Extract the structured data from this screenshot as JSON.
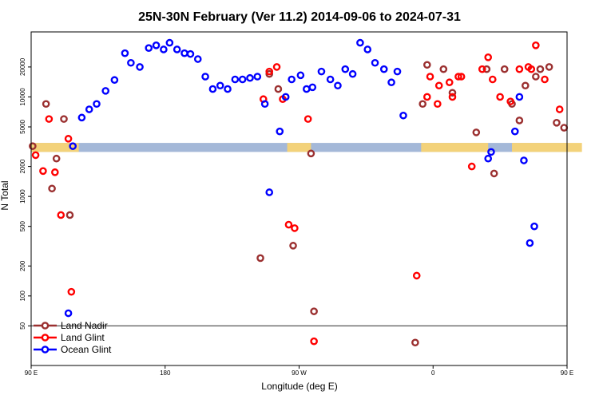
{
  "chart_data": {
    "type": "scatter",
    "title": "25N-30N February (Ver 11.2)   2014-09-06 to 2024-07-31",
    "xlabel": "Longitude (deg E)",
    "ylabel": "N Total",
    "x_axis": {
      "range_deg_east": [
        90,
        450
      ],
      "ticks": [
        {
          "value": 90,
          "label": "90 E"
        },
        {
          "value": 180,
          "label": "180"
        },
        {
          "value": 270,
          "label": "90 W"
        },
        {
          "value": 360,
          "label": "0"
        },
        {
          "value": 450,
          "label": "90 E"
        },
        {
          "value": 540,
          "label": "180"
        }
      ]
    },
    "y_axis": {
      "scale": "log",
      "ylim": [
        20,
        45000
      ],
      "ticks": [
        {
          "value": 50,
          "label": "50"
        },
        {
          "value": 100,
          "label": "100"
        },
        {
          "value": 200,
          "label": "200"
        },
        {
          "value": 500,
          "label": "500"
        },
        {
          "value": 1000,
          "label": "1000"
        },
        {
          "value": 2000,
          "label": "2000"
        },
        {
          "value": 5000,
          "label": "5000"
        },
        {
          "value": 10000,
          "label": "10000"
        },
        {
          "value": 20000,
          "label": "20000"
        }
      ]
    },
    "baseline_value": 50,
    "land_mask_band": {
      "y_range": [
        2800,
        3450
      ],
      "ocean_color": "#a4b8d8",
      "land_color": "#f3d27a",
      "land_lon": [
        [
          90,
          122
        ],
        [
          262,
          278
        ],
        [
          352,
          397
        ],
        [
          413,
          460
        ]
      ]
    },
    "legend": {
      "position": "bottom-left",
      "entries": [
        {
          "name": "Land Nadir",
          "color": "#9b3030"
        },
        {
          "name": "Land Glint",
          "color": "#ff0000"
        },
        {
          "name": "Ocean Glint",
          "color": "#0000ff"
        }
      ]
    },
    "series": [
      {
        "name": "Land Nadir",
        "color": "#9b3030",
        "points": [
          [
            91,
            3200
          ],
          [
            100,
            8500
          ],
          [
            104,
            1200
          ],
          [
            107,
            2400
          ],
          [
            112,
            6000
          ],
          [
            116,
            650
          ],
          [
            244,
            240
          ],
          [
            250,
            17000
          ],
          [
            256,
            12000
          ],
          [
            266,
            320
          ],
          [
            278,
            2700
          ],
          [
            280,
            70
          ],
          [
            348,
            34
          ],
          [
            353,
            8500
          ],
          [
            356,
            21000
          ],
          [
            367,
            19000
          ],
          [
            373,
            11000
          ],
          [
            389,
            4400
          ],
          [
            396,
            19000
          ],
          [
            401,
            1700
          ],
          [
            408,
            19000
          ],
          [
            413,
            8500
          ],
          [
            418,
            5800
          ],
          [
            422,
            13000
          ],
          [
            429,
            16000
          ],
          [
            432,
            19000
          ],
          [
            438,
            20000
          ],
          [
            443,
            5500
          ],
          [
            448,
            4900
          ],
          [
            453,
            3200
          ],
          [
            463,
            8500
          ],
          [
            467,
            1200
          ],
          [
            471,
            2400
          ],
          [
            476,
            6000
          ],
          [
            481,
            650
          ]
        ]
      },
      {
        "name": "Land Glint",
        "color": "#ff0000",
        "points": [
          [
            93,
            2600
          ],
          [
            98,
            1800
          ],
          [
            102,
            6000
          ],
          [
            106,
            1750
          ],
          [
            110,
            650
          ],
          [
            115,
            3800
          ],
          [
            117,
            110
          ],
          [
            246,
            9500
          ],
          [
            250,
            18000
          ],
          [
            255,
            20000
          ],
          [
            259,
            9500
          ],
          [
            263,
            520
          ],
          [
            267,
            480
          ],
          [
            276,
            6000
          ],
          [
            280,
            35
          ],
          [
            349,
            160
          ],
          [
            356,
            10000
          ],
          [
            358,
            16000
          ],
          [
            363,
            8500
          ],
          [
            364,
            13000
          ],
          [
            371,
            14000
          ],
          [
            373,
            10000
          ],
          [
            377,
            16000
          ],
          [
            379,
            16000
          ],
          [
            386,
            2000
          ],
          [
            393,
            19000
          ],
          [
            397,
            25000
          ],
          [
            400,
            15000
          ],
          [
            405,
            10000
          ],
          [
            412,
            9000
          ],
          [
            418,
            19000
          ],
          [
            424,
            20000
          ],
          [
            426,
            19000
          ],
          [
            429,
            33000
          ],
          [
            435,
            15000
          ],
          [
            445,
            7500
          ],
          [
            451,
            7000
          ],
          [
            456,
            2600
          ],
          [
            460,
            1800
          ],
          [
            465,
            6000
          ],
          [
            468,
            1750
          ],
          [
            472,
            650
          ],
          [
            478,
            6000
          ],
          [
            482,
            110
          ]
        ]
      },
      {
        "name": "Ocean Glint",
        "color": "#0000ff",
        "points": [
          [
            115,
            67
          ],
          [
            118,
            3200
          ],
          [
            124,
            6200
          ],
          [
            129,
            7500
          ],
          [
            134,
            8500
          ],
          [
            140,
            11500
          ],
          [
            146,
            14800
          ],
          [
            153,
            27500
          ],
          [
            157,
            22000
          ],
          [
            163,
            20000
          ],
          [
            169,
            31000
          ],
          [
            174,
            33000
          ],
          [
            179,
            30000
          ],
          [
            183,
            35000
          ],
          [
            188,
            30000
          ],
          [
            193,
            27500
          ],
          [
            197,
            27000
          ],
          [
            202,
            24000
          ],
          [
            207,
            16000
          ],
          [
            212,
            12000
          ],
          [
            217,
            13000
          ],
          [
            222,
            12000
          ],
          [
            227,
            15000
          ],
          [
            232,
            15000
          ],
          [
            237,
            15500
          ],
          [
            242,
            16000
          ],
          [
            247,
            8500
          ],
          [
            250,
            1100
          ],
          [
            257,
            4500
          ],
          [
            261,
            10000
          ],
          [
            265,
            15000
          ],
          [
            271,
            16500
          ],
          [
            275,
            12000
          ],
          [
            279,
            12500
          ],
          [
            285,
            18000
          ],
          [
            291,
            15000
          ],
          [
            296,
            13000
          ],
          [
            301,
            19000
          ],
          [
            306,
            17000
          ],
          [
            311,
            35000
          ],
          [
            316,
            30000
          ],
          [
            321,
            22000
          ],
          [
            327,
            19000
          ],
          [
            332,
            14000
          ],
          [
            336,
            18000
          ],
          [
            340,
            6500
          ],
          [
            397,
            2400
          ],
          [
            399,
            2800
          ],
          [
            415,
            4500
          ],
          [
            418,
            10000
          ],
          [
            421,
            2300
          ],
          [
            425,
            340
          ],
          [
            428,
            500
          ],
          [
            481,
            68
          ],
          [
            484,
            3200
          ],
          [
            488,
            6200
          ],
          [
            493,
            7500
          ],
          [
            498,
            8500
          ],
          [
            504,
            11500
          ],
          [
            510,
            14800
          ],
          [
            517,
            27500
          ]
        ]
      }
    ]
  }
}
